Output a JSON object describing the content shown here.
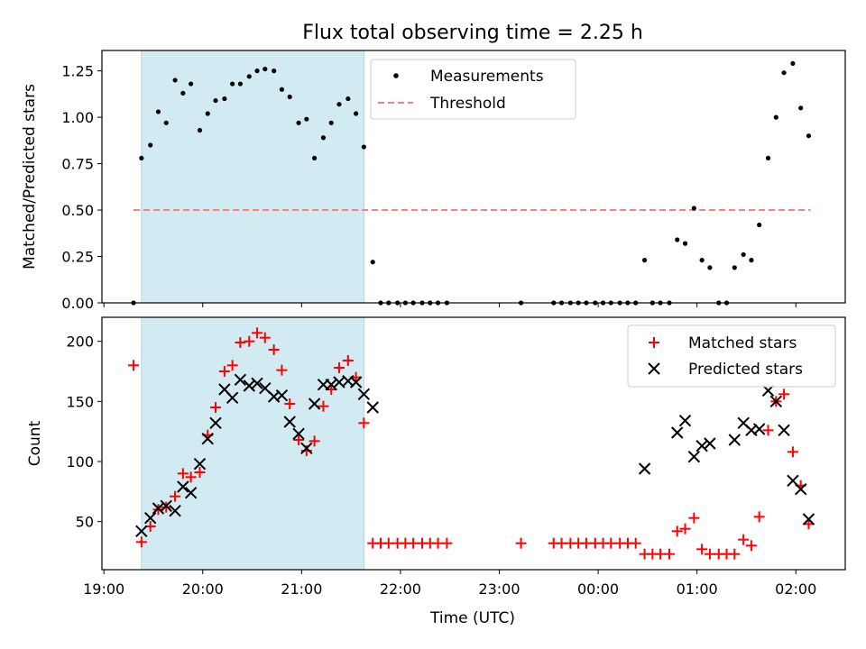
{
  "chart_data": [
    {
      "type": "scatter",
      "title": "Flux total observing time = 2.25 h",
      "xlabel": "",
      "ylabel": "Matched/Predicted stars",
      "ylim": [
        0,
        1.36
      ],
      "yticks": [
        0.0,
        0.25,
        0.5,
        0.75,
        1.0,
        1.25
      ],
      "ytick_labels": [
        "0.00",
        "0.25",
        "0.50",
        "0.75",
        "1.00",
        "1.25"
      ],
      "xlim_hours": [
        18.98,
        26.5
      ],
      "shaded_span_hours": [
        19.38,
        21.63
      ],
      "shade_color": "#add8e6",
      "legend": {
        "placement": "top-center",
        "entries": [
          "Measurements",
          "Threshold"
        ]
      },
      "threshold": {
        "name": "Threshold",
        "value": 0.5,
        "x_hours": [
          19.3,
          26.15
        ],
        "color": "#ff7f7f"
      },
      "series": [
        {
          "name": "Measurements",
          "marker": "dot",
          "color": "#000000",
          "points": [
            [
              19.3,
              0.0
            ],
            [
              19.38,
              0.78
            ],
            [
              19.47,
              0.85
            ],
            [
              19.55,
              1.03
            ],
            [
              19.63,
              0.97
            ],
            [
              19.72,
              1.2
            ],
            [
              19.8,
              1.13
            ],
            [
              19.88,
              1.18
            ],
            [
              19.97,
              0.93
            ],
            [
              20.05,
              1.02
            ],
            [
              20.13,
              1.09
            ],
            [
              20.22,
              1.1
            ],
            [
              20.3,
              1.18
            ],
            [
              20.38,
              1.18
            ],
            [
              20.47,
              1.22
            ],
            [
              20.55,
              1.25
            ],
            [
              20.63,
              1.26
            ],
            [
              20.72,
              1.25
            ],
            [
              20.8,
              1.15
            ],
            [
              20.88,
              1.11
            ],
            [
              20.97,
              0.97
            ],
            [
              21.05,
              0.99
            ],
            [
              21.13,
              0.78
            ],
            [
              21.22,
              0.89
            ],
            [
              21.3,
              0.97
            ],
            [
              21.38,
              1.07
            ],
            [
              21.47,
              1.1
            ],
            [
              21.55,
              1.02
            ],
            [
              21.63,
              0.84
            ],
            [
              21.72,
              0.22
            ],
            [
              21.8,
              0.0
            ],
            [
              21.88,
              0.0
            ],
            [
              21.97,
              0.0
            ],
            [
              22.05,
              0.0
            ],
            [
              22.13,
              0.0
            ],
            [
              22.22,
              0.0
            ],
            [
              22.3,
              0.0
            ],
            [
              22.38,
              0.0
            ],
            [
              22.47,
              0.0
            ],
            [
              23.22,
              0.0
            ],
            [
              23.55,
              0.0
            ],
            [
              23.63,
              0.0
            ],
            [
              23.72,
              0.0
            ],
            [
              23.8,
              0.0
            ],
            [
              23.88,
              0.0
            ],
            [
              23.97,
              0.0
            ],
            [
              24.05,
              0.0
            ],
            [
              24.13,
              0.0
            ],
            [
              24.22,
              0.0
            ],
            [
              24.3,
              0.0
            ],
            [
              24.38,
              0.0
            ],
            [
              24.47,
              0.23
            ],
            [
              24.55,
              0.0
            ],
            [
              24.63,
              0.0
            ],
            [
              24.72,
              0.0
            ],
            [
              24.8,
              0.34
            ],
            [
              24.88,
              0.32
            ],
            [
              24.97,
              0.51
            ],
            [
              25.05,
              0.23
            ],
            [
              25.13,
              0.19
            ],
            [
              25.22,
              0.0
            ],
            [
              25.3,
              0.0
            ],
            [
              25.38,
              0.19
            ],
            [
              25.47,
              0.26
            ],
            [
              25.55,
              0.23
            ],
            [
              25.63,
              0.42
            ],
            [
              25.72,
              0.78
            ],
            [
              25.8,
              1.0
            ],
            [
              25.88,
              1.24
            ],
            [
              25.97,
              1.29
            ],
            [
              26.05,
              1.05
            ],
            [
              26.13,
              0.9
            ]
          ]
        }
      ]
    },
    {
      "type": "scatter",
      "title": "",
      "xlabel": "Time (UTC)",
      "ylabel": "Count",
      "ylim": [
        10,
        220
      ],
      "yticks": [
        50,
        100,
        150,
        200
      ],
      "ytick_labels": [
        "50",
        "100",
        "150",
        "200"
      ],
      "xlim_hours": [
        18.98,
        26.5
      ],
      "xticks_hours": [
        19,
        20,
        21,
        22,
        23,
        24,
        25,
        26
      ],
      "xtick_labels": [
        "19:00",
        "20:00",
        "21:00",
        "22:00",
        "23:00",
        "00:00",
        "01:00",
        "02:00"
      ],
      "shaded_span_hours": [
        19.38,
        21.63
      ],
      "shade_color": "#add8e6",
      "legend": {
        "placement": "top-right",
        "entries": [
          "Matched stars",
          "Predicted stars"
        ]
      },
      "series": [
        {
          "name": "Matched stars",
          "marker": "plus",
          "color": "#ff0000",
          "points": [
            [
              19.3,
              180
            ],
            [
              19.38,
              33
            ],
            [
              19.47,
              46
            ],
            [
              19.55,
              60
            ],
            [
              19.63,
              62
            ],
            [
              19.72,
              71
            ],
            [
              19.8,
              90
            ],
            [
              19.88,
              87
            ],
            [
              19.97,
              91
            ],
            [
              20.05,
              122
            ],
            [
              20.13,
              145
            ],
            [
              20.22,
              175
            ],
            [
              20.3,
              180
            ],
            [
              20.38,
              199
            ],
            [
              20.47,
              200
            ],
            [
              20.55,
              207
            ],
            [
              20.63,
              203
            ],
            [
              20.72,
              193
            ],
            [
              20.8,
              176
            ],
            [
              20.88,
              148
            ],
            [
              20.97,
              118
            ],
            [
              21.05,
              109
            ],
            [
              21.13,
              117
            ],
            [
              21.22,
              146
            ],
            [
              21.3,
              160
            ],
            [
              21.38,
              178
            ],
            [
              21.47,
              184
            ],
            [
              21.55,
              170
            ],
            [
              21.63,
              132
            ],
            [
              21.72,
              32
            ],
            [
              21.8,
              32
            ],
            [
              21.88,
              32
            ],
            [
              21.97,
              32
            ],
            [
              22.05,
              32
            ],
            [
              22.13,
              32
            ],
            [
              22.22,
              32
            ],
            [
              22.3,
              32
            ],
            [
              22.38,
              32
            ],
            [
              22.47,
              32
            ],
            [
              23.22,
              32
            ],
            [
              23.55,
              32
            ],
            [
              23.63,
              32
            ],
            [
              23.72,
              32
            ],
            [
              23.8,
              32
            ],
            [
              23.88,
              32
            ],
            [
              23.97,
              32
            ],
            [
              24.05,
              32
            ],
            [
              24.13,
              32
            ],
            [
              24.22,
              32
            ],
            [
              24.3,
              32
            ],
            [
              24.38,
              32
            ],
            [
              24.47,
              23
            ],
            [
              24.55,
              23
            ],
            [
              24.63,
              23
            ],
            [
              24.72,
              23
            ],
            [
              24.8,
              42
            ],
            [
              24.88,
              44
            ],
            [
              24.97,
              53
            ],
            [
              25.05,
              27
            ],
            [
              25.13,
              23
            ],
            [
              25.22,
              23
            ],
            [
              25.3,
              23
            ],
            [
              25.38,
              23
            ],
            [
              25.47,
              35
            ],
            [
              25.55,
              30
            ],
            [
              25.63,
              54
            ],
            [
              25.72,
              126
            ],
            [
              25.8,
              150
            ],
            [
              25.88,
              156
            ],
            [
              25.97,
              108
            ],
            [
              26.05,
              80
            ],
            [
              26.13,
              48
            ]
          ]
        },
        {
          "name": "Predicted stars",
          "marker": "x",
          "color": "#000000",
          "points": [
            [
              19.38,
              42
            ],
            [
              19.47,
              53
            ],
            [
              19.55,
              61
            ],
            [
              19.63,
              63
            ],
            [
              19.72,
              59
            ],
            [
              19.8,
              79
            ],
            [
              19.88,
              74
            ],
            [
              19.97,
              98
            ],
            [
              20.05,
              119
            ],
            [
              20.13,
              132
            ],
            [
              20.22,
              160
            ],
            [
              20.3,
              153
            ],
            [
              20.38,
              168
            ],
            [
              20.47,
              163
            ],
            [
              20.55,
              165
            ],
            [
              20.63,
              161
            ],
            [
              20.72,
              154
            ],
            [
              20.8,
              155
            ],
            [
              20.88,
              133
            ],
            [
              20.97,
              123
            ],
            [
              21.05,
              111
            ],
            [
              21.13,
              148
            ],
            [
              21.22,
              164
            ],
            [
              21.3,
              164
            ],
            [
              21.38,
              166
            ],
            [
              21.47,
              167
            ],
            [
              21.55,
              166
            ],
            [
              21.63,
              156
            ],
            [
              21.72,
              145
            ],
            [
              24.47,
              94
            ],
            [
              24.8,
              124
            ],
            [
              24.88,
              134
            ],
            [
              24.97,
              104
            ],
            [
              25.05,
              113
            ],
            [
              25.13,
              115
            ],
            [
              25.38,
              118
            ],
            [
              25.47,
              132
            ],
            [
              25.55,
              126
            ],
            [
              25.63,
              127
            ],
            [
              25.72,
              159
            ],
            [
              25.8,
              150
            ],
            [
              25.88,
              126
            ],
            [
              25.97,
              84
            ],
            [
              26.05,
              77
            ],
            [
              26.13,
              52
            ]
          ]
        }
      ]
    }
  ]
}
